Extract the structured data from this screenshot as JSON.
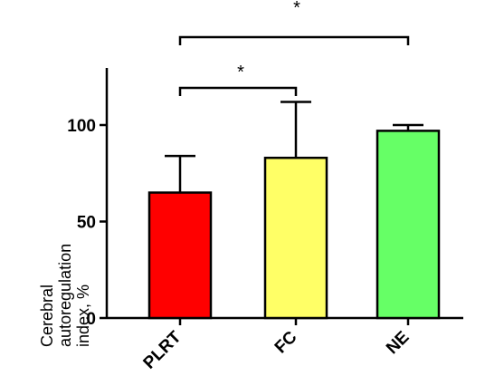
{
  "chart_data": {
    "type": "bar",
    "categories": [
      "PLRT",
      "FC",
      "NE"
    ],
    "values": [
      65,
      83,
      97
    ],
    "error_upper": [
      84,
      112,
      100
    ],
    "colors": [
      "#ff0000",
      "#ffff66",
      "#66ff66"
    ],
    "ylabel_lines": [
      "Cerebral",
      "autoregulation",
      "index, %"
    ],
    "ylim": [
      0,
      130
    ],
    "yticks": [
      0,
      50,
      100
    ],
    "grid": false,
    "significance": [
      {
        "from": 0,
        "to": 1,
        "label": "*"
      },
      {
        "from": 0,
        "to": 2,
        "label": "*"
      }
    ]
  }
}
